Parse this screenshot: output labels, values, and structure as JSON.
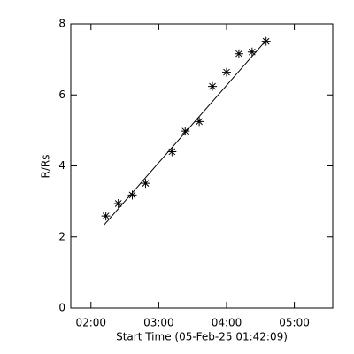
{
  "chart_data": {
    "type": "scatter",
    "x_label": "Start Time (05-Feb-25 01:42:09)",
    "y_label": "R/Rs",
    "xlim": [
      102.15,
      334
    ],
    "ylim": [
      0,
      8
    ],
    "xticks": [
      {
        "value": 120,
        "label": "02:00"
      },
      {
        "value": 180,
        "label": "03:00"
      },
      {
        "value": 240,
        "label": "04:00"
      },
      {
        "value": 300,
        "label": "05:00"
      }
    ],
    "yticks": [
      0,
      2,
      4,
      6,
      8
    ],
    "series": [
      {
        "name": "measurements",
        "color": "#000000",
        "marker": "asterisk",
        "x": [
          133.2,
          144.2,
          156.6,
          168.3,
          191.7,
          203.4,
          215.8,
          227.5,
          240,
          250.9,
          262.6,
          275
        ],
        "values": [
          2.59,
          2.94,
          3.18,
          3.51,
          4.4,
          4.98,
          5.25,
          6.24,
          6.64,
          7.16,
          7.21,
          7.51
        ]
      },
      {
        "name": "fit",
        "color": "#000000",
        "marker": "line",
        "x": [
          131.7,
          274.2
        ],
        "values": [
          2.34,
          7.51
        ]
      }
    ]
  }
}
